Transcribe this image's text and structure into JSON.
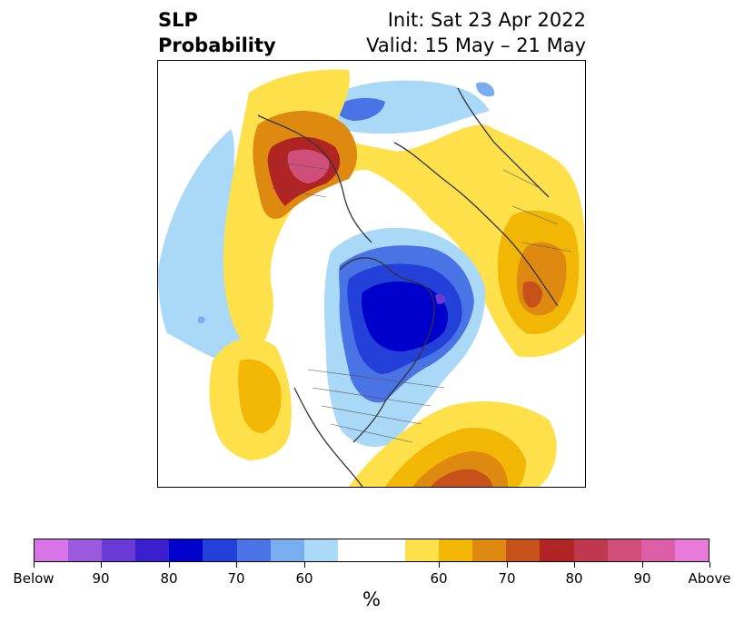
{
  "header": {
    "title_line1": "SLP",
    "title_line2": "Probability",
    "init": "Init: Sat 23 Apr 2022",
    "valid": "Valid: 15 May – 21 May"
  },
  "colorbar": {
    "unit": "%",
    "tick_labels": [
      "Below",
      "90",
      "80",
      "70",
      "60",
      "60",
      "70",
      "80",
      "90",
      "Above"
    ],
    "below_colors": [
      "#d974e8",
      "#9b59dd",
      "#6a3ad6",
      "#3a1fcf",
      "#0000cc",
      "#2340d8",
      "#4a73e5",
      "#78aef0",
      "#aad8f7"
    ],
    "neutral_color": "#ffffff",
    "above_colors": [
      "#fde04a",
      "#f2b705",
      "#de8a10",
      "#c6521a",
      "#b02424",
      "#c0384f",
      "#cf4f7a",
      "#dc5ea6",
      "#e779d8"
    ]
  },
  "map": {
    "projection": "north-polar-stereographic",
    "variable": "sea-level-pressure-probability"
  }
}
